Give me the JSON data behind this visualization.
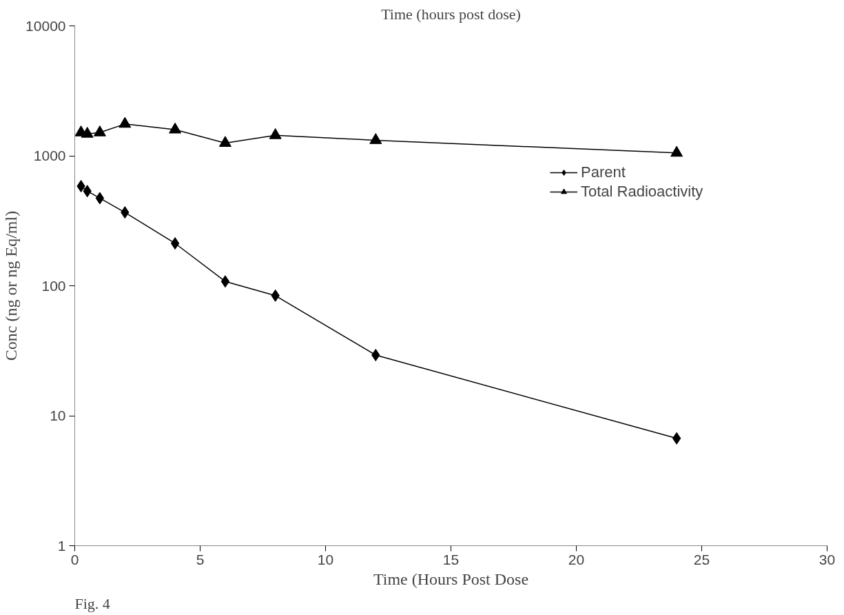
{
  "chart_data": {
    "type": "line",
    "title": "Time (hours post dose)",
    "xlabel": "Time (Hours Post Dose",
    "ylabel": "Conc (ng or ng Eq/ml)",
    "annotations": [
      "Fig. 4"
    ],
    "x": [
      0.25,
      0.5,
      1,
      2,
      4,
      6,
      8,
      12,
      24
    ],
    "series": [
      {
        "name": "Parent",
        "color": "#000000",
        "marker": "diamond",
        "values": [
          584,
          535,
          472,
          367,
          212,
          108,
          84,
          29.3,
          6.7
        ]
      },
      {
        "name": "Total Radioactivity",
        "color": "#000000",
        "marker": "triangle",
        "values": [
          1510,
          1474,
          1510,
          1757,
          1589,
          1253,
          1438,
          1318,
          1052
        ]
      }
    ],
    "xlim": [
      0,
      30
    ],
    "xticks": [
      0,
      5,
      10,
      15,
      20,
      25,
      30
    ],
    "ylim": [
      1,
      10000
    ],
    "yticks": [
      1,
      10,
      100,
      1000,
      10000
    ],
    "log": "y",
    "grid": false,
    "legend": "right",
    "line_style": "solid"
  }
}
